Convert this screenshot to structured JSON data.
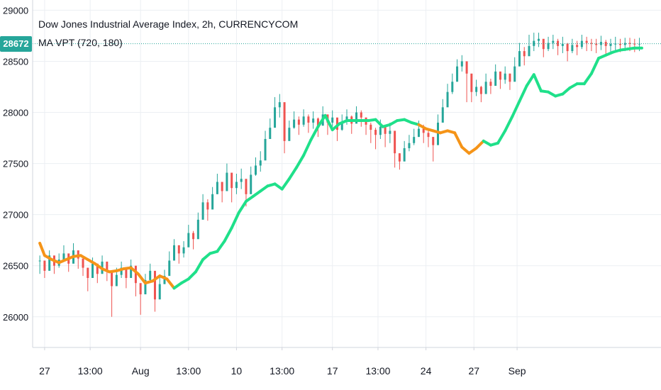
{
  "header": {
    "title": "Dow Jones Industrial Average Index, 2h, CURRENCYCOM",
    "indicator": "MA VPT (720, 180)"
  },
  "price_tag": "28672",
  "colors": {
    "up_candle": "#26a69a",
    "down_candle": "#ef5350",
    "ma_bullish": "#1fe08a",
    "ma_bearish": "#f59418",
    "price_line": "#26a69a",
    "grid": "#eceff3",
    "axis_text": "#131722"
  },
  "chart_data": {
    "type": "line",
    "title": "Dow Jones Industrial Average Index, 2h, CURRENCYCOM",
    "xlabel": "",
    "ylabel": "",
    "ylim": [
      25700,
      29100
    ],
    "grid": true,
    "y_ticks": [
      "26000",
      "26500",
      "27000",
      "27500",
      "28000",
      "28500",
      "29000"
    ],
    "x_ticks": [
      "27",
      "13:00",
      "Aug",
      "13:00",
      "10",
      "13:00",
      "17",
      "13:00",
      "24",
      "27",
      "Sep"
    ],
    "last_price": 28672,
    "series": [
      {
        "name": "MA VPT (720, 180)",
        "x": [
          0,
          2,
          5,
          8,
          11,
          14,
          17,
          20,
          23,
          26,
          29,
          32,
          35,
          38,
          41,
          44,
          47,
          50,
          53,
          56,
          59,
          62,
          65,
          68,
          71,
          74,
          77,
          80,
          83,
          86,
          89,
          92,
          95,
          98,
          101,
          104,
          107,
          110,
          113,
          116,
          119,
          122,
          125,
          128,
          131,
          134,
          137,
          140,
          143,
          146,
          149,
          152,
          155,
          158,
          161,
          164,
          167,
          170,
          173,
          176,
          179,
          182,
          185,
          188,
          191,
          194,
          197,
          200,
          203,
          206,
          209,
          212,
          215,
          218,
          221,
          224,
          227,
          230,
          233,
          236,
          239,
          242,
          245,
          248,
          251
        ],
        "values": [
          26720,
          26600,
          26560,
          26530,
          26560,
          26590,
          26600,
          26560,
          26520,
          26470,
          26440,
          26450,
          26470,
          26480,
          26420,
          26330,
          26350,
          26400,
          26370,
          26280,
          26330,
          26370,
          26440,
          26560,
          26620,
          26640,
          26740,
          26870,
          27020,
          27130,
          27180,
          27230,
          27280,
          27300,
          27250,
          27350,
          27460,
          27580,
          27730,
          27860,
          27970,
          27830,
          27890,
          27920,
          27920,
          27920,
          27920,
          27930,
          27860,
          27880,
          27920,
          27930,
          27900,
          27880,
          27840,
          27820,
          27800,
          27820,
          27800,
          27660,
          27600,
          27650,
          27720,
          27680,
          27700,
          27820,
          27960,
          28110,
          28260,
          28370,
          28210,
          28200,
          28160,
          28180,
          28240,
          28280,
          28280,
          28380,
          28530,
          28560,
          28590,
          28610,
          28620,
          28630,
          28630
        ],
        "direction": [
          "b",
          "b",
          "b",
          "b",
          "b",
          "b",
          "b",
          "b",
          "b",
          "b",
          "b",
          "b",
          "b",
          "b",
          "b",
          "b",
          "b",
          "b",
          "b",
          "b",
          "u",
          "u",
          "u",
          "u",
          "u",
          "u",
          "u",
          "u",
          "u",
          "u",
          "u",
          "u",
          "u",
          "u",
          "u",
          "u",
          "u",
          "u",
          "u",
          "u",
          "u",
          "u",
          "u",
          "u",
          "u",
          "u",
          "u",
          "u",
          "u",
          "u",
          "u",
          "u",
          "u",
          "u",
          "b",
          "b",
          "b",
          "b",
          "b",
          "b",
          "b",
          "b",
          "b",
          "u",
          "u",
          "u",
          "u",
          "u",
          "u",
          "u",
          "u",
          "u",
          "u",
          "u",
          "u",
          "u",
          "u",
          "u",
          "u",
          "u",
          "u",
          "u",
          "u",
          "u",
          "u"
        ]
      }
    ],
    "candles": {
      "x": [
        0,
        2,
        4,
        6,
        8,
        10,
        12,
        14,
        16,
        18,
        20,
        22,
        24,
        26,
        28,
        30,
        32,
        34,
        36,
        38,
        40,
        42,
        44,
        46,
        48,
        50,
        52,
        54,
        56,
        58,
        60,
        62,
        64,
        66,
        68,
        70,
        72,
        74,
        76,
        78,
        80,
        82,
        84,
        86,
        88,
        90,
        92,
        94,
        96,
        98,
        100,
        102,
        104,
        106,
        108,
        110,
        112,
        114,
        116,
        118,
        120,
        122,
        124,
        126,
        128,
        130,
        132,
        134,
        136,
        138,
        140,
        142,
        144,
        146,
        148,
        150,
        152,
        154,
        156,
        158,
        160,
        162,
        164,
        166,
        168,
        170,
        172,
        174,
        176,
        178,
        180,
        182,
        184,
        186,
        188,
        190,
        192,
        194,
        196,
        198,
        200,
        202,
        204,
        206,
        208,
        210,
        212,
        214,
        216,
        218,
        220,
        222,
        224,
        226,
        228,
        230,
        232,
        234,
        236,
        238,
        240,
        242,
        244,
        246,
        248,
        250
      ],
      "close": [
        26550,
        26450,
        26600,
        26500,
        26560,
        26620,
        26520,
        26650,
        26570,
        26480,
        26380,
        26520,
        26420,
        26540,
        26450,
        26300,
        26410,
        26480,
        26380,
        26500,
        26330,
        26220,
        26360,
        26450,
        26170,
        26320,
        26400,
        26550,
        26700,
        26620,
        26680,
        26820,
        26760,
        26950,
        27120,
        27050,
        27200,
        27320,
        27230,
        27410,
        27260,
        27320,
        27350,
        27200,
        27390,
        27480,
        27530,
        27740,
        27850,
        28050,
        28100,
        27720,
        27850,
        27930,
        27880,
        27960,
        27900,
        27940,
        27870,
        27980,
        27900,
        27950,
        27830,
        27910,
        27960,
        27890,
        28000,
        27950,
        27880,
        27830,
        27780,
        27860,
        27790,
        27820,
        27600,
        27520,
        27650,
        27700,
        27760,
        27840,
        27800,
        27760,
        27680,
        27900,
        28050,
        28200,
        28300,
        28450,
        28500,
        28380,
        28200,
        28250,
        28180,
        28300,
        28260,
        28400,
        28320,
        28380,
        28300,
        28450,
        28600,
        28550,
        28650,
        28700,
        28720,
        28620,
        28680,
        28700,
        28650,
        28672,
        28600,
        28660,
        28640,
        28700,
        28680,
        28672,
        28660,
        28690,
        28650,
        28670,
        28672,
        28660,
        28680,
        28672,
        28665,
        28672
      ],
      "high": [
        26600,
        26520,
        26650,
        26560,
        26620,
        26700,
        26600,
        26720,
        26640,
        26560,
        26480,
        26580,
        26520,
        26600,
        26520,
        26380,
        26480,
        26540,
        26460,
        26560,
        26400,
        26300,
        26420,
        26520,
        26250,
        26400,
        26460,
        26640,
        26760,
        26700,
        26740,
        26900,
        26840,
        27020,
        27200,
        27150,
        27270,
        27400,
        27310,
        27500,
        27350,
        27400,
        27450,
        27300,
        27470,
        27560,
        27620,
        27820,
        27940,
        28150,
        28180,
        27850,
        27920,
        28010,
        27960,
        28030,
        27980,
        28010,
        27950,
        28060,
        27980,
        28020,
        27920,
        27980,
        28030,
        27970,
        28060,
        28020,
        27950,
        27900,
        27850,
        27930,
        27870,
        27900,
        27700,
        27600,
        27720,
        27780,
        27840,
        27920,
        27880,
        27840,
        27760,
        27980,
        28130,
        28280,
        28380,
        28520,
        28560,
        28450,
        28280,
        28320,
        28260,
        28380,
        28330,
        28470,
        28400,
        28450,
        28380,
        28540,
        28680,
        28640,
        28760,
        28780,
        28780,
        28700,
        28740,
        28760,
        28720,
        28740,
        28680,
        28720,
        28700,
        28760,
        28740,
        28720,
        28720,
        28750,
        28710,
        28720,
        28740,
        28720,
        28730,
        28730,
        28720,
        28730
      ],
      "low": [
        26420,
        26380,
        26480,
        26420,
        26480,
        26540,
        26440,
        26560,
        26470,
        26400,
        26250,
        26420,
        26330,
        26450,
        26350,
        26000,
        26320,
        26380,
        26280,
        26400,
        26200,
        26020,
        26240,
        26340,
        26050,
        26220,
        26320,
        26460,
        26600,
        26520,
        26580,
        26700,
        26660,
        26840,
        26980,
        26940,
        27080,
        27200,
        27120,
        27300,
        27120,
        27200,
        27250,
        27080,
        27280,
        27380,
        27420,
        27620,
        27740,
        27950,
        27950,
        27600,
        27760,
        27840,
        27780,
        27860,
        27800,
        27840,
        27760,
        27880,
        27780,
        27860,
        27720,
        27820,
        27880,
        27790,
        27900,
        27860,
        27780,
        27700,
        27640,
        27740,
        27660,
        27700,
        27460,
        27440,
        27560,
        27620,
        27680,
        27760,
        27700,
        27660,
        27520,
        27820,
        27960,
        28100,
        28180,
        28360,
        28400,
        28100,
        28100,
        28160,
        28100,
        28200,
        28180,
        28300,
        28230,
        28280,
        28220,
        28380,
        28500,
        28460,
        28560,
        28600,
        28640,
        28540,
        28600,
        28620,
        28560,
        28580,
        28500,
        28580,
        28560,
        28620,
        28600,
        28600,
        28580,
        28610,
        28570,
        28590,
        28600,
        28590,
        28600,
        28600,
        28590,
        28600
      ]
    },
    "x_tick_positions": [
      2,
      21,
      42,
      62,
      82,
      101,
      122,
      141,
      161,
      181,
      199
    ]
  }
}
